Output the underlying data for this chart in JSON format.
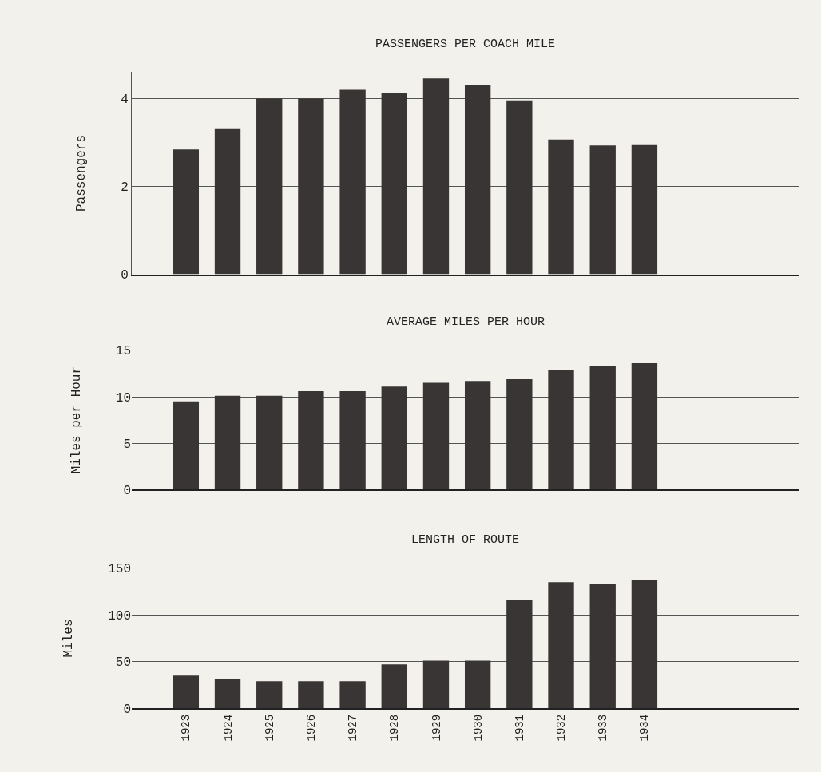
{
  "chart_data": [
    {
      "type": "bar",
      "title": "PASSENGERS PER COACH MILE",
      "ylabel": "Passengers",
      "categories": [
        "1923",
        "1924",
        "1925",
        "1926",
        "1927",
        "1928",
        "1929",
        "1930",
        "1931",
        "1932",
        "1933",
        "1934"
      ],
      "values": [
        2.84,
        3.32,
        4.0,
        4.0,
        4.2,
        4.13,
        4.46,
        4.3,
        3.96,
        3.07,
        2.93,
        2.96
      ],
      "color": "#3a3535",
      "ylim": [
        0,
        4.6
      ],
      "yticks": [
        0,
        2,
        4
      ],
      "grid": "y",
      "tick_labels": "y"
    },
    {
      "type": "bar",
      "title": "AVERAGE MILES PER HOUR",
      "ylabel": "Miles per Hour",
      "categories": [
        "1923",
        "1924",
        "1925",
        "1926",
        "1927",
        "1928",
        "1929",
        "1930",
        "1931",
        "1932",
        "1933",
        "1934"
      ],
      "values": [
        9.5,
        10.1,
        10.1,
        10.6,
        10.6,
        11.1,
        11.5,
        11.7,
        11.9,
        12.9,
        13.3,
        13.6
      ],
      "color": "#3a3535",
      "ylim": [
        0,
        15
      ],
      "yticks": [
        0,
        5,
        10,
        15
      ],
      "grid": "y",
      "tick_labels": "y"
    },
    {
      "type": "bar",
      "title": "LENGTH OF ROUTE",
      "ylabel": "Miles",
      "categories": [
        "1923",
        "1924",
        "1925",
        "1926",
        "1927",
        "1928",
        "1929",
        "1930",
        "1931",
        "1932",
        "1933",
        "1934"
      ],
      "values": [
        35,
        31,
        29,
        29,
        29,
        47,
        51,
        51,
        116,
        135,
        133,
        137
      ],
      "color": "#3a3535",
      "ylim": [
        0,
        150
      ],
      "yticks": [
        0,
        50,
        100,
        150
      ],
      "grid": "y"
    }
  ]
}
